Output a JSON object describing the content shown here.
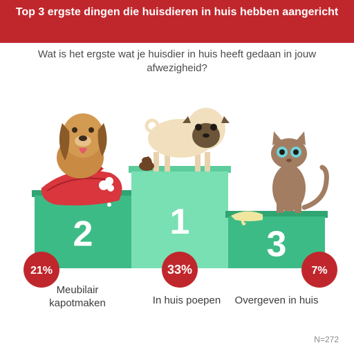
{
  "header": {
    "title": "Top 3 ergste dingen die huisdieren in huis hebben aangericht"
  },
  "question": "Wat is het ergste wat je huisdier in huis heeft gedaan in jouw afwezigheid?",
  "colors": {
    "header": "#c0272d",
    "podium_side": "#3dbb86",
    "podium_center": "#79e0b4",
    "badge": "#c0272d"
  },
  "chart_data": {
    "type": "bar",
    "categories": [
      "Meubilair kapotmaken",
      "In huis poepen",
      "Overgeven in huis"
    ],
    "values": [
      21,
      33,
      7
    ],
    "value_labels": [
      "21%",
      "33%",
      "7%"
    ],
    "ranks": [
      "2",
      "1",
      "3"
    ],
    "unit": "%"
  },
  "footnote": "N=272"
}
